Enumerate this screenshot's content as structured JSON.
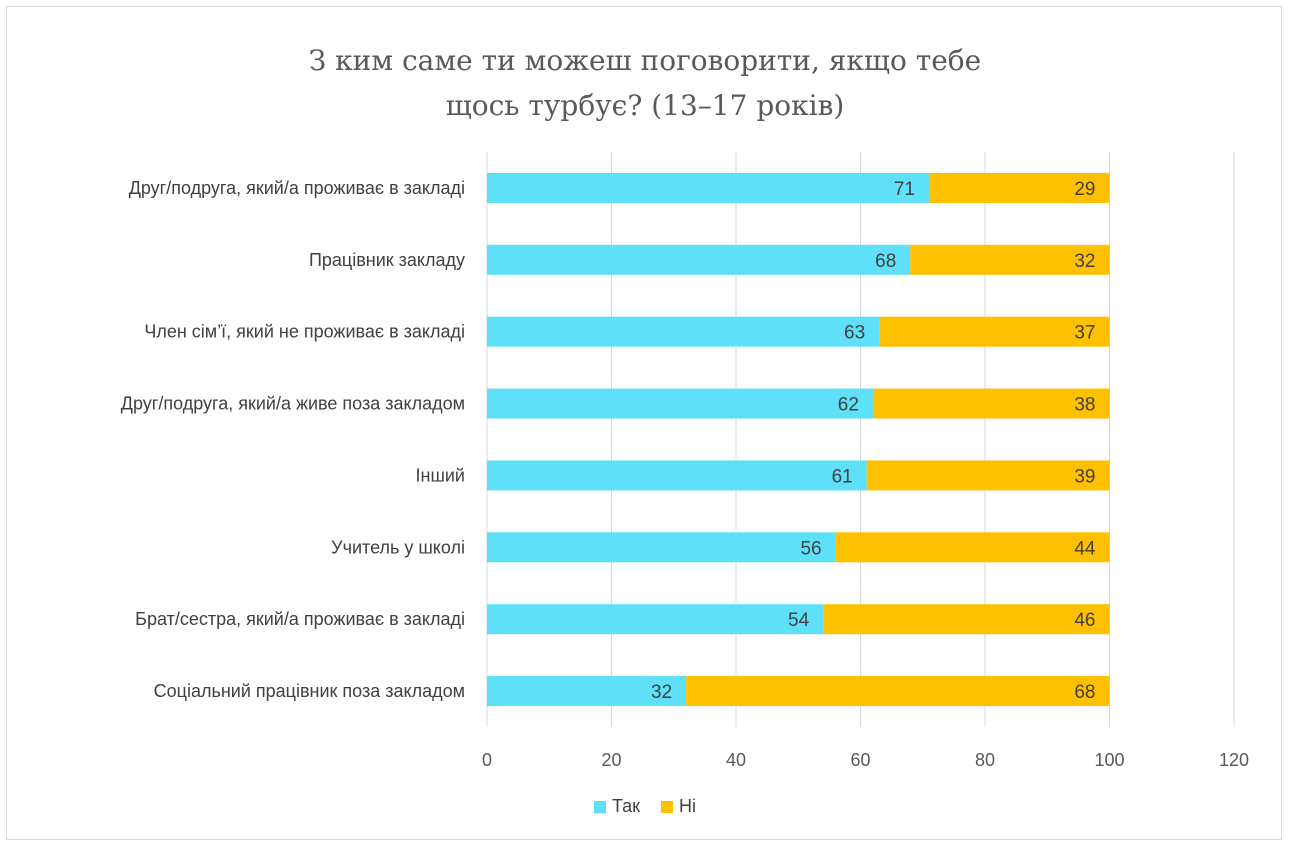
{
  "chart_data": {
    "type": "bar",
    "orientation": "horizontal",
    "stacked": true,
    "title_lines": [
      "З ким саме ти можеш поговорити, якщо тебе",
      "щось турбує? (13–17 років)"
    ],
    "categories": [
      "Друг/подруга, який/а проживає в закладі",
      "Працівник закладу",
      "Член сім’ї, який не проживає в закладі",
      "Друг/подруга, який/а живе поза закладом",
      "Інший",
      "Учитель у школі",
      "Брат/сестра, який/а проживає в закладі",
      "Соціальний працівник поза закладом"
    ],
    "series": [
      {
        "name": "Так",
        "color": "#5de0f8",
        "values": [
          71,
          68,
          63,
          62,
          61,
          56,
          54,
          32
        ]
      },
      {
        "name": "Ні",
        "color": "#ffc000",
        "values": [
          29,
          32,
          37,
          38,
          39,
          44,
          46,
          68
        ]
      }
    ],
    "xlim": [
      0,
      120
    ],
    "xticks": [
      0,
      20,
      40,
      60,
      80,
      100,
      120
    ],
    "grid": true,
    "legend_position": "bottom"
  }
}
